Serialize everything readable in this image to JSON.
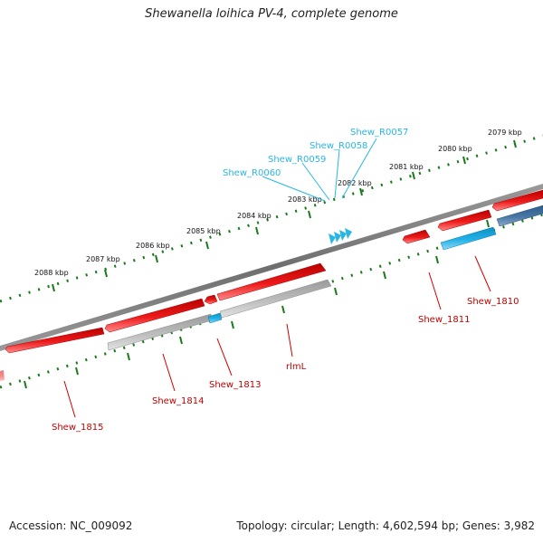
{
  "title": "Shewanella loihica PV-4, complete genome",
  "footer": {
    "accession": "Accession: NC_009092",
    "topology": "Topology: circular; Length: 4,602,594 bp; Genes: 3,982"
  },
  "colors": {
    "backbone": "#808080",
    "gene_red": "#e01010",
    "gene_gray": "#b5b5b5",
    "gene_cyan": "#22aadd",
    "gene_steel": "#3f6f9e",
    "tick": "#1a7a1a",
    "label_red": "#c00000",
    "label_blue": "#29b6e3"
  },
  "kbp_labels": [
    "2079 kbp",
    "2080 kbp",
    "2081 kbp",
    "2082 kbp",
    "2083 kbp",
    "2084 kbp",
    "2085 kbp",
    "2086 kbp",
    "2087 kbp",
    "2088 kbp"
  ],
  "gene_labels_red": [
    "Shew_1810",
    "Shew_1811",
    "rlmL",
    "Shew_1813",
    "Shew_1814",
    "Shew_1815"
  ],
  "gene_labels_blue": [
    "Shew_R0057",
    "Shew_R0058",
    "Shew_R0059",
    "Shew_R0060"
  ]
}
